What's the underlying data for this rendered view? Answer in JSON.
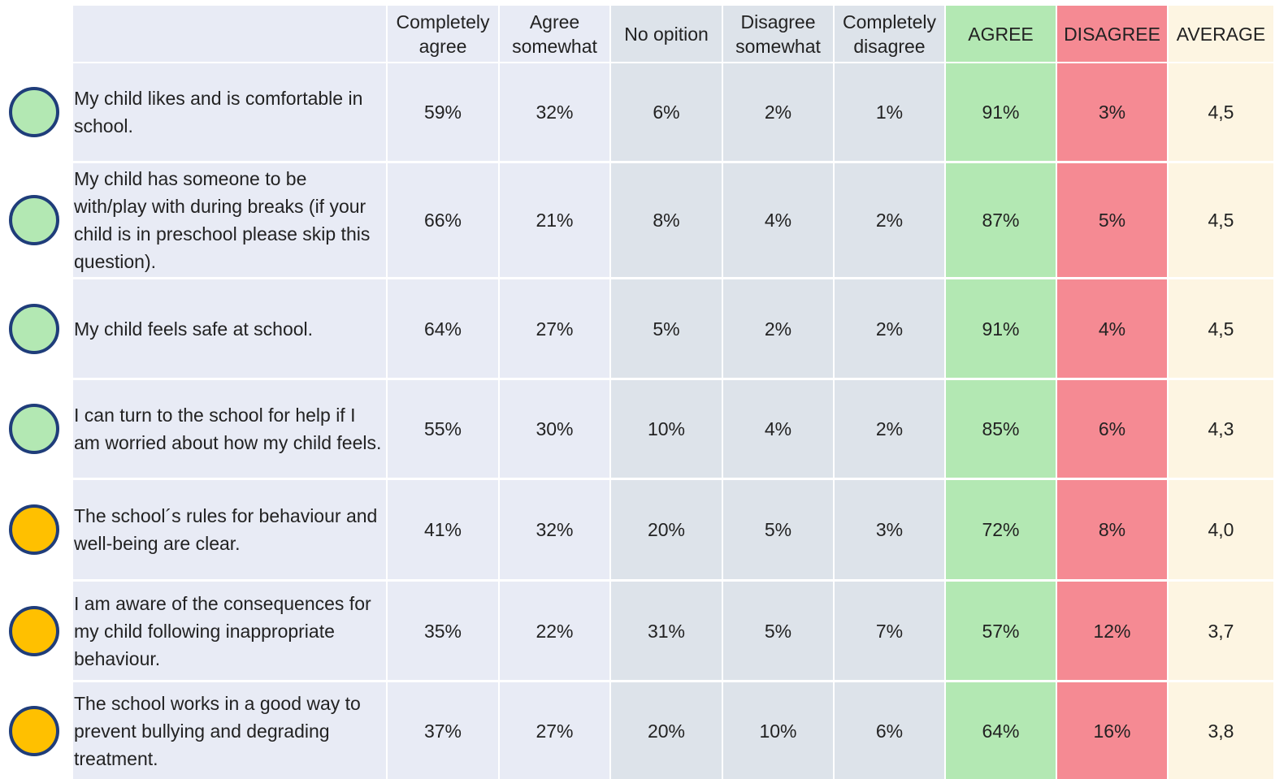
{
  "table": {
    "columns": [
      "Completely agree",
      "Agree somewhat",
      "No opition",
      "Disagree somewhat",
      "Completely disagree",
      "AGREE",
      "DISAGREE",
      "AVERAGE"
    ],
    "column_colors": [
      "#e8ebf5",
      "#e8ebf5",
      "#dde3ea",
      "#dde3ea",
      "#dde3ea",
      "#b3e8b3",
      "#f58a93",
      "#fdf5e2"
    ],
    "label_color": "#e8ebf5",
    "rows": [
      {
        "indicator": "#b3e8b3",
        "label": "My child likes and is comfortable in school.",
        "cells": [
          "59%",
          "32%",
          "6%",
          "2%",
          "1%",
          "91%",
          "3%",
          "4,5"
        ]
      },
      {
        "indicator": "#b3e8b3",
        "label": "My child has someone to be with/play with during breaks (if your child is in preschool please skip this question).",
        "cells": [
          "66%",
          "21%",
          "8%",
          "4%",
          "2%",
          "87%",
          "5%",
          "4,5"
        ]
      },
      {
        "indicator": "#b3e8b3",
        "label": "My child feels safe at school.",
        "cells": [
          "64%",
          "27%",
          "5%",
          "2%",
          "2%",
          "91%",
          "4%",
          "4,5"
        ]
      },
      {
        "indicator": "#b3e8b3",
        "label": "I can turn to the school for help if I am worried about how my child feels.",
        "cells": [
          "55%",
          "30%",
          "10%",
          "4%",
          "2%",
          "85%",
          "6%",
          "4,3"
        ]
      },
      {
        "indicator": "#ffc000",
        "label": "The school´s rules for behaviour and well-being are clear.",
        "cells": [
          "41%",
          "32%",
          "20%",
          "5%",
          "3%",
          "72%",
          "8%",
          "4,0"
        ]
      },
      {
        "indicator": "#ffc000",
        "label": "I am aware of the consequences for my child following inappropriate behaviour.",
        "cells": [
          "35%",
          "22%",
          "31%",
          "5%",
          "7%",
          "57%",
          "12%",
          "3,7"
        ]
      },
      {
        "indicator": "#ffc000",
        "label": "The school works in a good way to prevent bullying and degrading treatment.",
        "cells": [
          "37%",
          "27%",
          "20%",
          "10%",
          "6%",
          "64%",
          "16%",
          "3,8"
        ]
      }
    ]
  }
}
